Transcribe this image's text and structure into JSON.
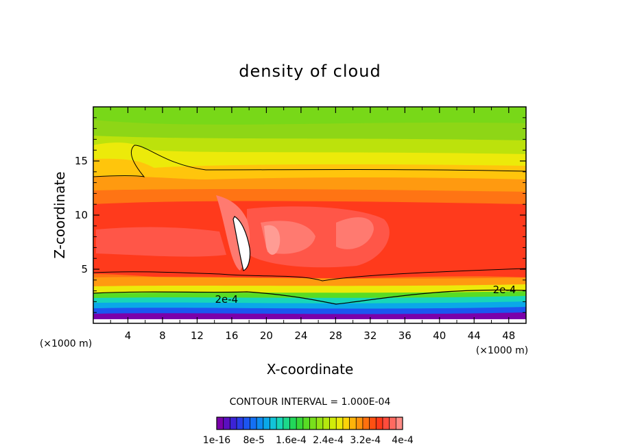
{
  "chart_data": {
    "type": "contour",
    "title": "density of cloud",
    "xlabel": "X-coordinate",
    "ylabel": "Z-coordinate",
    "x_unit_note": "(×1000 m)",
    "z_unit_note": "(×1000 m)",
    "xlim": [
      0,
      50
    ],
    "zlim": [
      0,
      20
    ],
    "x_ticks": [
      4,
      8,
      12,
      16,
      20,
      24,
      28,
      32,
      36,
      40,
      44,
      48
    ],
    "z_ticks": [
      5,
      10,
      15
    ],
    "contour_interval_text": "CONTOUR INTERVAL = 1.000E-04",
    "contour_labels": [
      {
        "text": "2e-4",
        "x": 15.4,
        "z": 2.2
      },
      {
        "text": "2e-4",
        "x": 47.5,
        "z": 3.1
      }
    ],
    "colorbar": {
      "colors": [
        "#7a00aa",
        "#5a0fc0",
        "#3c23d6",
        "#2a3ce6",
        "#1c55f0",
        "#1470f4",
        "#0e8cf0",
        "#0aa8e8",
        "#12c4d8",
        "#18d6b8",
        "#1cd88a",
        "#22d85a",
        "#38d838",
        "#58dc24",
        "#78e01c",
        "#96e414",
        "#b4e80e",
        "#d0ec0a",
        "#eaea0a",
        "#fcd408",
        "#ffb40a",
        "#ff920c",
        "#ff700e",
        "#ff5012",
        "#ff3a1a",
        "#ff4c3c",
        "#ff6a60",
        "#ff8c86"
      ],
      "tick_labels": [
        "1e-16",
        "8e-5",
        "1.6e-4",
        "2.4e-4",
        "3.2e-4",
        "4e-4"
      ]
    }
  }
}
